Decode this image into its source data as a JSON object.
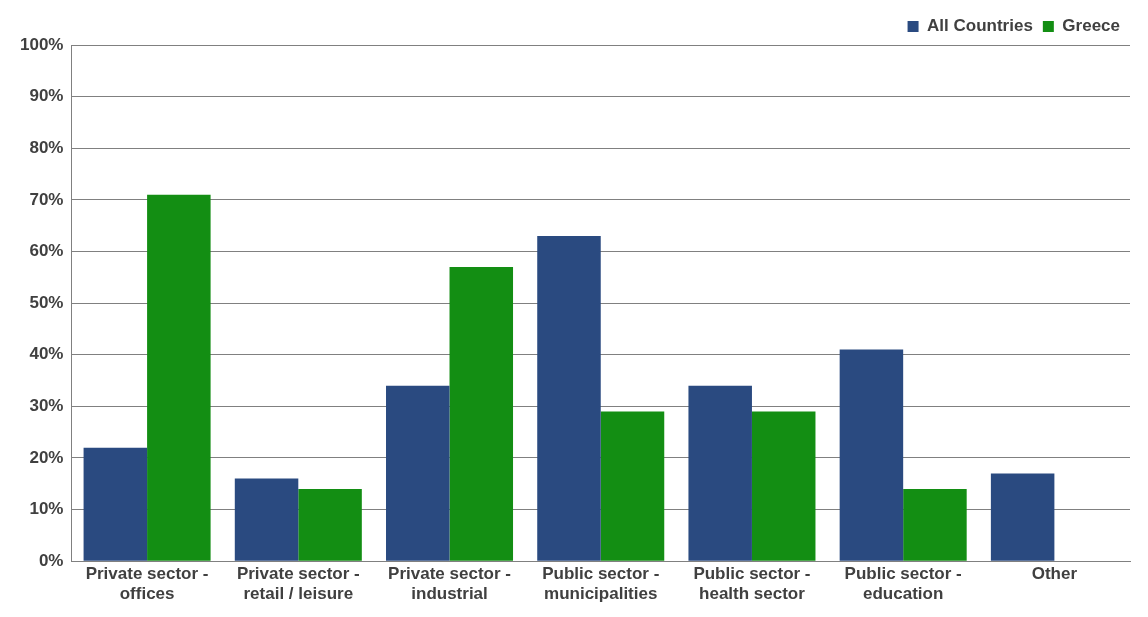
{
  "chart_data": {
    "type": "bar",
    "categories": [
      "Private sector - offices",
      "Private sector - retail / leisure",
      "Private sector - industrial",
      "Public sector - municipalities",
      "Public sector - health sector",
      "Public sector - education",
      "Other"
    ],
    "series": [
      {
        "name": "All Countries",
        "color": "#2a4a80",
        "values": [
          22,
          16,
          34,
          63,
          34,
          41,
          17
        ]
      },
      {
        "name": "Greece",
        "color": "#138e13",
        "values": [
          71,
          14,
          57,
          29,
          29,
          14,
          0
        ]
      }
    ],
    "ylim": [
      0,
      100
    ],
    "yticks": [
      {
        "value": 0,
        "label": "0%"
      },
      {
        "value": 10,
        "label": "10%"
      },
      {
        "value": 20,
        "label": "20%"
      },
      {
        "value": 30,
        "label": "30%"
      },
      {
        "value": 40,
        "label": "40%"
      },
      {
        "value": 50,
        "label": "50%"
      },
      {
        "value": 60,
        "label": "60%"
      },
      {
        "value": 70,
        "label": "70%"
      },
      {
        "value": 80,
        "label": "80%"
      },
      {
        "value": 90,
        "label": "90%"
      },
      {
        "value": 100,
        "label": "100%"
      }
    ],
    "grid": "y",
    "legend": "top right"
  }
}
